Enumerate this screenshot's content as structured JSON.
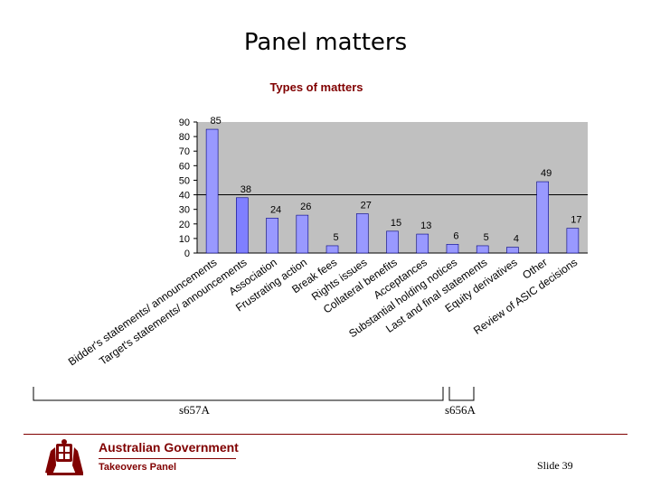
{
  "slide": {
    "title": "Panel matters",
    "slide_number": "Slide 39"
  },
  "chart_data": {
    "type": "bar",
    "title": "Types of matters",
    "categories": [
      "Bidder's statements/ announcements",
      "Target's statements/ announcements",
      "Association",
      "Frustrating action",
      "Break fees",
      "Rights issues",
      "Collateral benefits",
      "Acceptances",
      "Substantial holding notices",
      "Last and final statements",
      "Equity derivatives",
      "Other",
      "Review of ASIC decisions"
    ],
    "values": [
      85,
      38,
      24,
      26,
      5,
      27,
      15,
      13,
      6,
      5,
      4,
      49,
      17
    ],
    "ylim": [
      0,
      90
    ],
    "yticks": [
      0,
      10,
      20,
      30,
      40,
      50,
      60,
      70,
      80,
      90
    ],
    "grid": false,
    "bar_color": "#9999ff",
    "highlight_index": 1,
    "highlight_color": "#7f7fff",
    "reference_line": 40
  },
  "brackets": {
    "s657a": "s657A",
    "s656a": "s656A"
  },
  "logo": {
    "name": "Australian Government",
    "subtitle": "Takeovers Panel"
  },
  "colors": {
    "brand": "#800000",
    "plot_background": "#c0c0c0"
  }
}
